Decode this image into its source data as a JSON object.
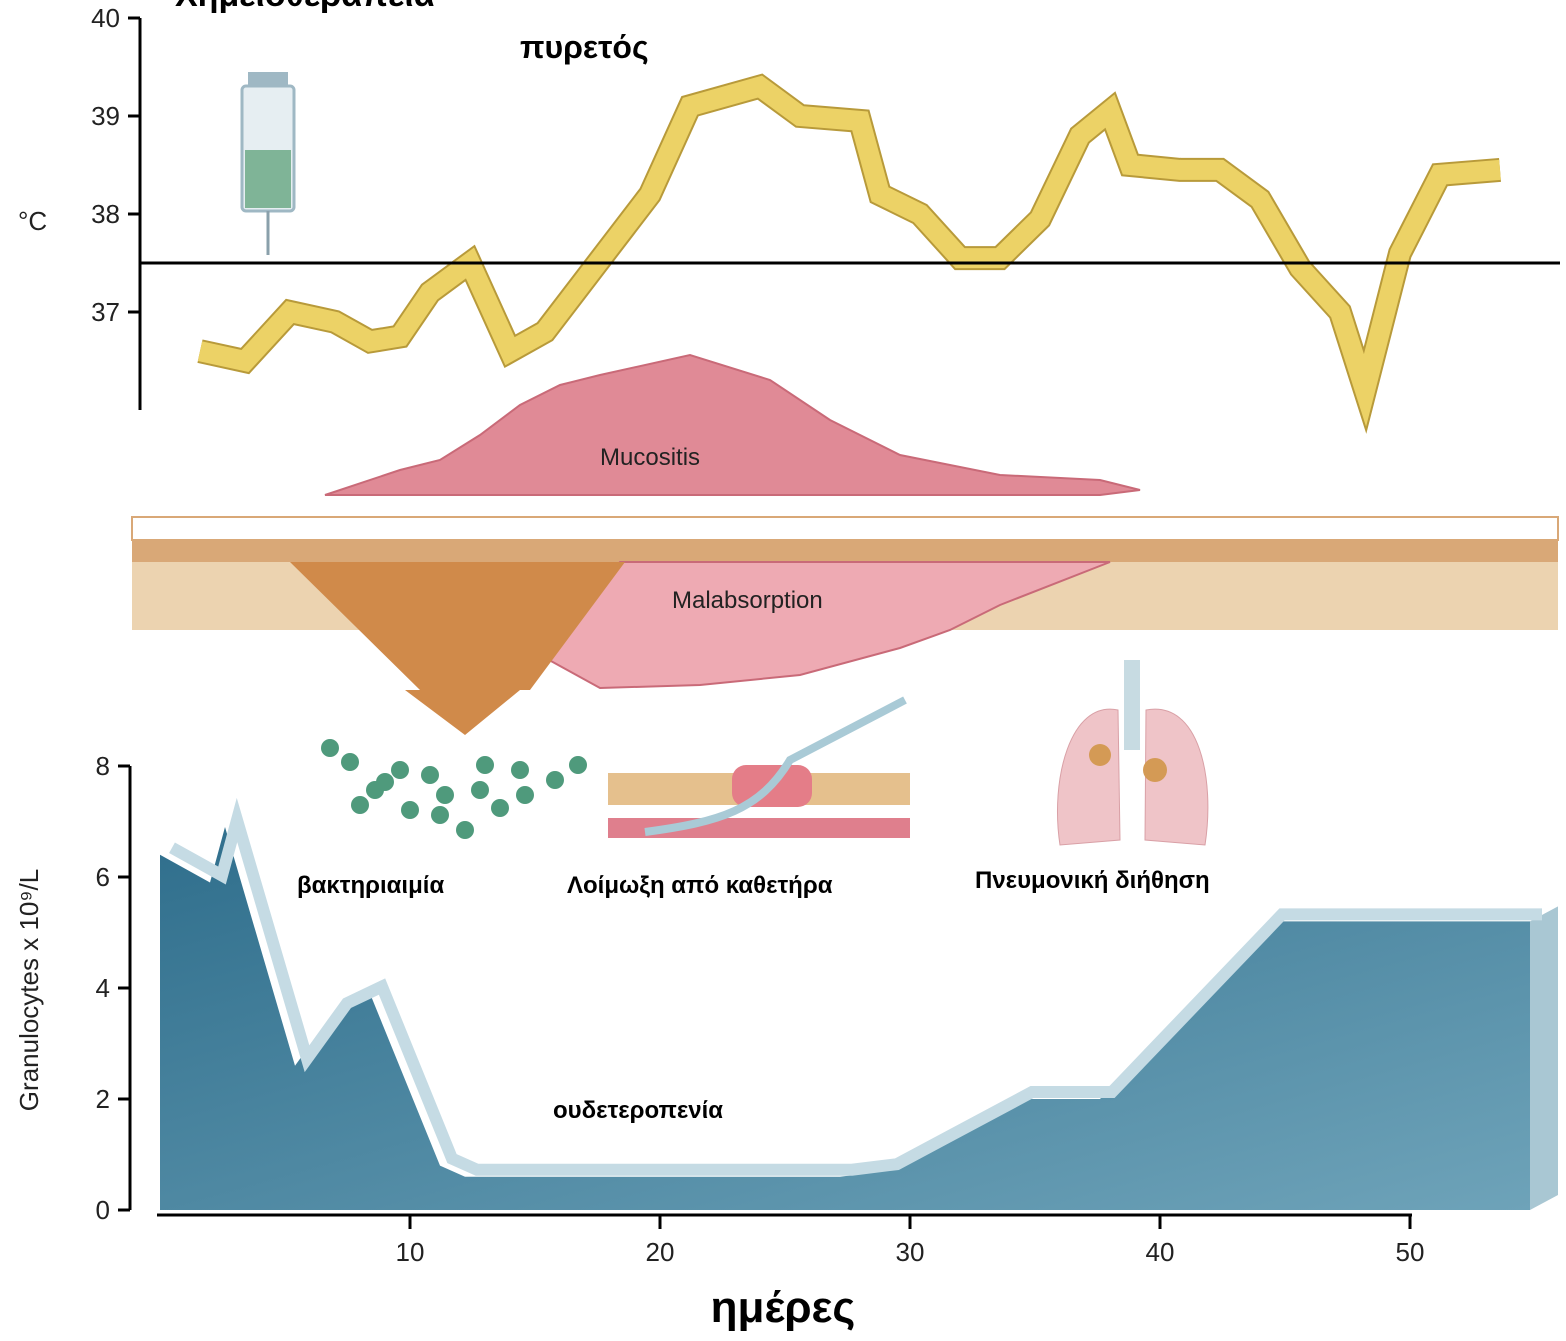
{
  "chart_data": [
    {
      "type": "line",
      "title": "Χημειοθεραπεία",
      "ylabel": "°C",
      "x": [
        1.6,
        3.4,
        5.2,
        7,
        8.4,
        9.6,
        10.8,
        12.4,
        14,
        15.4,
        19.6,
        21.2,
        24,
        25.6,
        28,
        28.8,
        30.4,
        32,
        33.6,
        35.2,
        36.8,
        38,
        38.8,
        40.8,
        42.4,
        44,
        45.6,
        47.2,
        48.2,
        49.6,
        51.2,
        53.6
      ],
      "values": [
        36.6,
        36.5,
        37.0,
        36.9,
        36.7,
        36.75,
        37.2,
        37.5,
        36.6,
        36.8,
        38.2,
        39.1,
        39.3,
        39.0,
        38.95,
        38.2,
        38.0,
        37.55,
        37.55,
        37.95,
        38.8,
        39.05,
        38.5,
        38.45,
        38.45,
        38.15,
        37.45,
        37.0,
        36.2,
        37.6,
        38.4,
        38.45
      ],
      "color": "#ecd266",
      "reference_line": 37.5,
      "xlim": [
        0,
        56
      ],
      "ylim": [
        36,
        40
      ],
      "yticks": [
        37,
        38,
        39,
        40
      ],
      "annotations": [
        "πυρετός",
        "Mucositis",
        "Malabsorption"
      ]
    },
    {
      "type": "area",
      "xlabel": "ημέρες",
      "ylabel": "Granulocytes x 10⁹/L",
      "x": [
        0,
        2,
        2.6,
        5.4,
        7,
        8.4,
        11.2,
        12.2,
        27.2,
        29,
        34.4,
        37.6,
        44.4,
        54.8
      ],
      "values": [
        6.4,
        5.9,
        6.9,
        2.6,
        3.6,
        3.9,
        0.8,
        0.6,
        0.6,
        0.7,
        2.0,
        2.0,
        5.2,
        5.2
      ],
      "color": "#3f7f9c",
      "xlim": [
        0,
        56
      ],
      "ylim": [
        0,
        8
      ],
      "xticks": [
        10,
        20,
        30,
        40,
        50
      ],
      "yticks": [
        0,
        2,
        4,
        6,
        8
      ],
      "annotations": [
        "βακτηριαιμία",
        "Λοίμωξη από καθετήρα",
        "Πνευμονική διήθηση",
        "ουδετεροπενία"
      ]
    }
  ]
}
